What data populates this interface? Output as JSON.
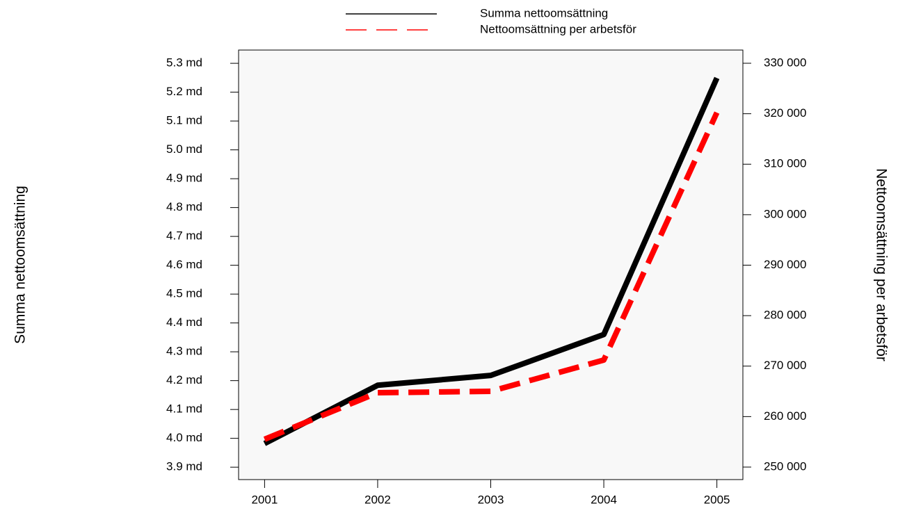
{
  "chart_data": {
    "type": "line",
    "x": [
      2001,
      2002,
      2003,
      2004,
      2005
    ],
    "xlim": [
      2000.77,
      2005.23
    ],
    "xticks": [
      2001,
      2002,
      2003,
      2004,
      2005
    ],
    "ylim": [
      3.857,
      5.346
    ],
    "yticks": [
      {
        "value": 3.9,
        "label": "3.9 md"
      },
      {
        "value": 4.0,
        "label": "4.0 md"
      },
      {
        "value": 4.1,
        "label": "4.1 md"
      },
      {
        "value": 4.2,
        "label": "4.2 md"
      },
      {
        "value": 4.3,
        "label": "4.3 md"
      },
      {
        "value": 4.4,
        "label": "4.4 md"
      },
      {
        "value": 4.5,
        "label": "4.5 md"
      },
      {
        "value": 4.6,
        "label": "4.6 md"
      },
      {
        "value": 4.7,
        "label": "4.7 md"
      },
      {
        "value": 4.8,
        "label": "4.8 md"
      },
      {
        "value": 4.9,
        "label": "4.9 md"
      },
      {
        "value": 5.0,
        "label": "5.0 md"
      },
      {
        "value": 5.1,
        "label": "5.1 md"
      },
      {
        "value": 5.2,
        "label": "5.2 md"
      },
      {
        "value": 5.3,
        "label": "5.3 md"
      }
    ],
    "y2lim": [
      247521,
      332616
    ],
    "y2ticks": [
      {
        "value": 250000,
        "label": "250 000"
      },
      {
        "value": 260000,
        "label": "260 000"
      },
      {
        "value": 270000,
        "label": "270 000"
      },
      {
        "value": 280000,
        "label": "280 000"
      },
      {
        "value": 290000,
        "label": "290 000"
      },
      {
        "value": 300000,
        "label": "300 000"
      },
      {
        "value": 310000,
        "label": "310 000"
      },
      {
        "value": 320000,
        "label": "320 000"
      },
      {
        "value": 330000,
        "label": "330 000"
      }
    ],
    "ylabel": "Summa nettoomsättning",
    "y2label": "Nettoomsättning per arbetsför",
    "series": [
      {
        "name": "Summa nettoomsättning",
        "color": "#000000",
        "dashed": false,
        "values": [
          3.982,
          4.184,
          4.218,
          4.36,
          5.249
        ]
      },
      {
        "name": "Nettoomsättning per arbetsför",
        "color": "#ff0000",
        "dashed": true,
        "axis": "y2",
        "values": [
          255508,
          264734,
          265010,
          271206,
          320220
        ]
      }
    ]
  }
}
